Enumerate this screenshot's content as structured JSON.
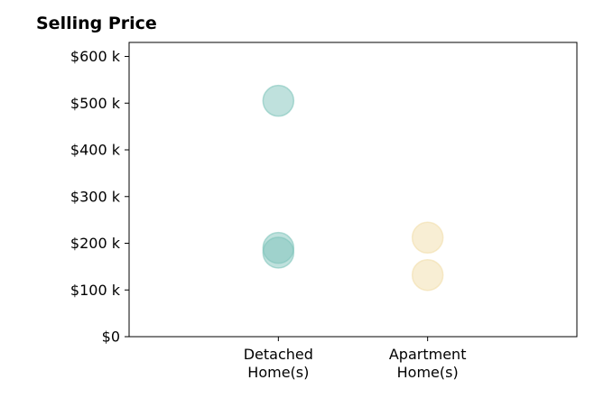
{
  "chart_data": {
    "type": "scatter",
    "title": "Selling Price",
    "xlabel": "",
    "ylabel": "",
    "categories": [
      "Detached\nHome(s)",
      "Apartment\nHome(s)"
    ],
    "xlim": [
      0,
      3
    ],
    "ylim": [
      0,
      630000
    ],
    "yticks": [
      0,
      100000,
      200000,
      300000,
      400000,
      500000,
      600000
    ],
    "ytick_labels": [
      "$0",
      "$100 k",
      "$200 k",
      "$300 k",
      "$400 k",
      "$500 k",
      "$600 k"
    ],
    "grid": false,
    "series": [
      {
        "category_index": 0,
        "color": "#7fc4bb",
        "points": [
          {
            "x": 1,
            "y": 505000
          },
          {
            "x": 1,
            "y": 190000
          },
          {
            "x": 1,
            "y": 180000
          }
        ]
      },
      {
        "category_index": 1,
        "color": "#f2ddaa",
        "points": [
          {
            "x": 2,
            "y": 212000
          },
          {
            "x": 2,
            "y": 132000
          }
        ]
      }
    ]
  }
}
